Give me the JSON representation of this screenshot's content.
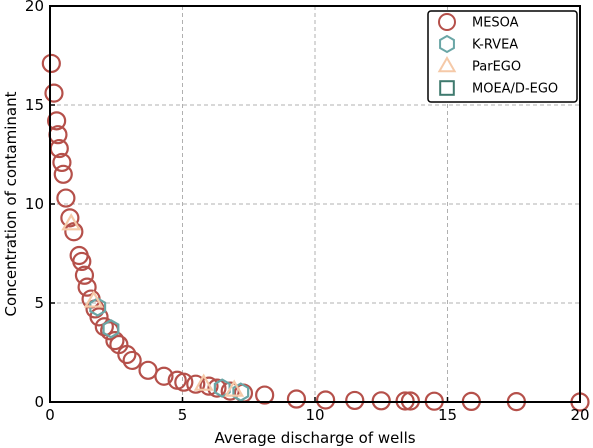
{
  "chart_data": {
    "type": "scatter",
    "xlabel": "Average discharge of wells",
    "ylabel": "Concentration of contaminant",
    "xlim": [
      0,
      20
    ],
    "ylim": [
      0,
      20
    ],
    "x_ticks": [
      "0",
      "5",
      "10",
      "15",
      "20"
    ],
    "y_ticks": [
      "0",
      "5",
      "10",
      "15",
      "20"
    ],
    "grid": true,
    "legend_position": "top-right",
    "series": [
      {
        "name": "MESOA",
        "marker": "circle",
        "color": "#b5504a",
        "points": [
          [
            0.05,
            17.1
          ],
          [
            0.15,
            15.6
          ],
          [
            0.25,
            14.2
          ],
          [
            0.3,
            13.5
          ],
          [
            0.35,
            12.8
          ],
          [
            0.45,
            12.1
          ],
          [
            0.5,
            11.5
          ],
          [
            0.6,
            10.3
          ],
          [
            0.75,
            9.3
          ],
          [
            0.9,
            8.6
          ],
          [
            1.1,
            7.4
          ],
          [
            1.2,
            7.1
          ],
          [
            1.3,
            6.4
          ],
          [
            1.4,
            5.8
          ],
          [
            1.55,
            5.2
          ],
          [
            1.7,
            4.7
          ],
          [
            1.85,
            4.3
          ],
          [
            2.05,
            3.8
          ],
          [
            2.25,
            3.6
          ],
          [
            2.45,
            3.1
          ],
          [
            2.6,
            2.9
          ],
          [
            2.9,
            2.4
          ],
          [
            3.1,
            2.1
          ],
          [
            3.7,
            1.6
          ],
          [
            4.3,
            1.3
          ],
          [
            4.8,
            1.1
          ],
          [
            5.05,
            1.0
          ],
          [
            5.5,
            0.9
          ],
          [
            6.0,
            0.8
          ],
          [
            6.3,
            0.7
          ],
          [
            6.8,
            0.55
          ],
          [
            7.3,
            0.45
          ],
          [
            8.1,
            0.35
          ],
          [
            9.3,
            0.15
          ],
          [
            10.4,
            0.1
          ],
          [
            11.5,
            0.08
          ],
          [
            12.5,
            0.06
          ],
          [
            13.4,
            0.05
          ],
          [
            13.6,
            0.05
          ],
          [
            14.5,
            0.04
          ],
          [
            15.9,
            0.03
          ],
          [
            17.6,
            0.02
          ],
          [
            20.0,
            0.0
          ]
        ]
      },
      {
        "name": "K-RVEA",
        "marker": "hexagon",
        "color": "#6aa6a6",
        "points": [
          [
            1.8,
            4.8
          ],
          [
            2.3,
            3.7
          ],
          [
            6.5,
            0.7
          ],
          [
            7.2,
            0.5
          ]
        ]
      },
      {
        "name": "ParEGO",
        "marker": "triangle",
        "color": "#f5c9a8",
        "points": [
          [
            0.8,
            9.0
          ],
          [
            1.65,
            5.1
          ],
          [
            5.8,
            0.9
          ],
          [
            6.95,
            0.6
          ]
        ]
      },
      {
        "name": "MOEA/D-EGO",
        "marker": "square",
        "color": "#3f7a6e",
        "points": []
      }
    ]
  }
}
